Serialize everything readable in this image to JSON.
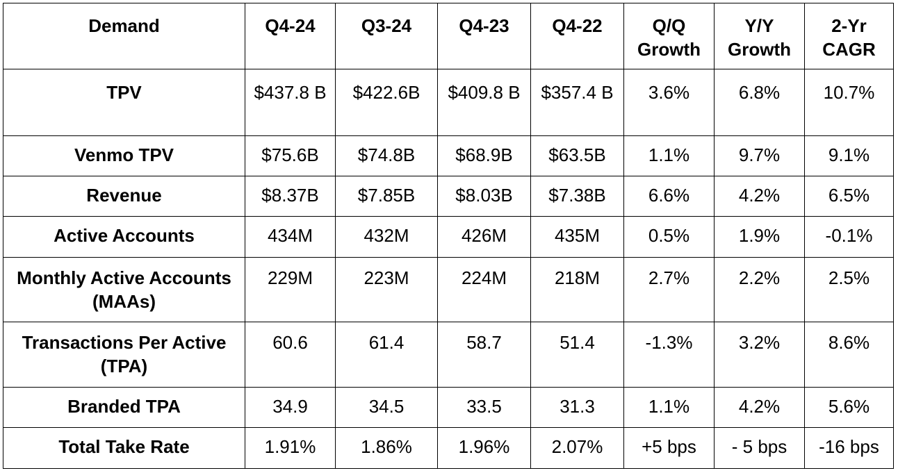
{
  "table": {
    "headers": [
      "Demand",
      "Q4-24",
      "Q3-24",
      "Q4-23",
      "Q4-22",
      "Q/Q Growth",
      "Y/Y Growth",
      "2-Yr CAGR"
    ],
    "rows": [
      {
        "label": "TPV",
        "values": [
          "$437.8 B",
          "$422.6B",
          "$409.8 B",
          "$357.4 B",
          "3.6%",
          "6.8%",
          "10.7%"
        ]
      },
      {
        "label": "Venmo TPV",
        "values": [
          "$75.6B",
          "$74.8B",
          "$68.9B",
          "$63.5B",
          "1.1%",
          "9.7%",
          "9.1%"
        ]
      },
      {
        "label": "Revenue",
        "values": [
          "$8.37B",
          "$7.85B",
          "$8.03B",
          "$7.38B",
          "6.6%",
          "4.2%",
          "6.5%"
        ]
      },
      {
        "label": "Active Accounts",
        "values": [
          "434M",
          "432M",
          "426M",
          "435M",
          "0.5%",
          "1.9%",
          "-0.1%"
        ]
      },
      {
        "label": "Monthly Active Accounts (MAAs)",
        "values": [
          "229M",
          "223M",
          "224M",
          "218M",
          "2.7%",
          "2.2%",
          "2.5%"
        ]
      },
      {
        "label": "Transactions Per Active (TPA)",
        "values": [
          "60.6",
          "61.4",
          "58.7",
          "51.4",
          "-1.3%",
          "3.2%",
          "8.6%"
        ]
      },
      {
        "label": "Branded TPA",
        "values": [
          "34.9",
          "34.5",
          "33.5",
          "31.3",
          "1.1%",
          "4.2%",
          "5.6%"
        ]
      },
      {
        "label": "Total Take Rate",
        "values": [
          "1.91%",
          "1.86%",
          "1.96%",
          "2.07%",
          "+5 bps",
          "- 5 bps",
          "-16 bps"
        ]
      }
    ]
  }
}
